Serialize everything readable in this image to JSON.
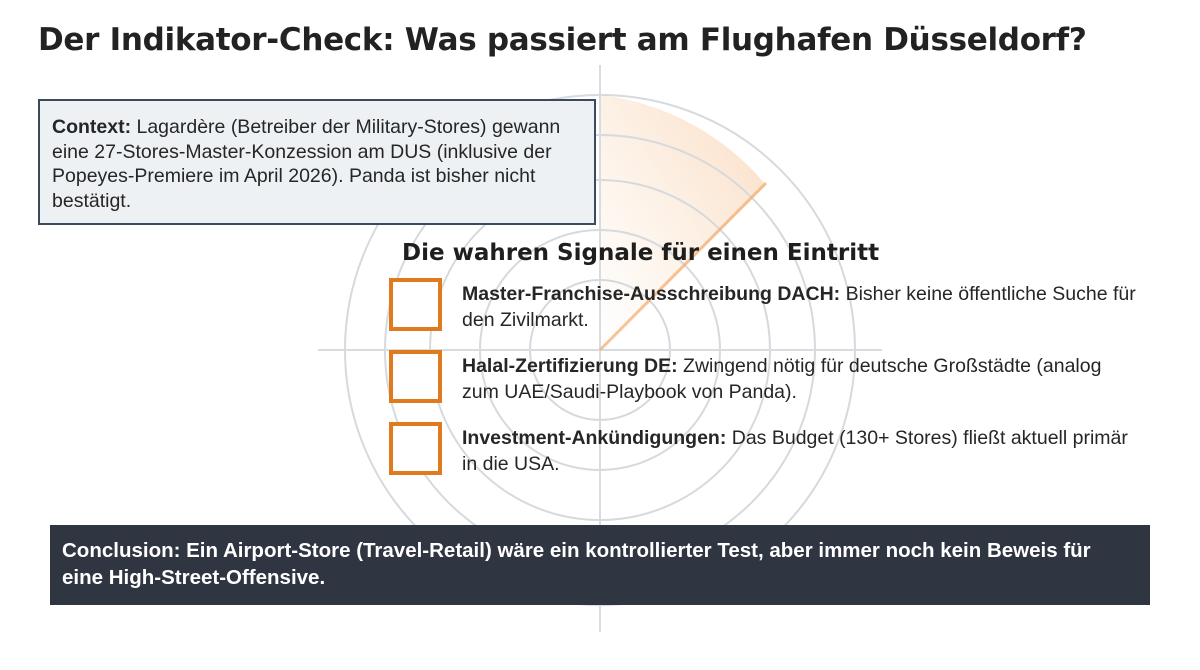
{
  "title": "Der Indikator-Check: Was passiert am Flughafen Düsseldorf?",
  "context": {
    "label": "Context:",
    "text": " Lagardère (Betreiber der Military-Stores) gewann eine 27-Stores-Master-Konzession am DUS (inklusive der Popeyes-Premiere im April 2026). Panda ist bisher nicht bestätigt."
  },
  "signals": {
    "heading": "Die wahren Signale für einen Eintritt",
    "items": [
      {
        "label": "Master-Franchise-Ausschreibung DACH:",
        "text": " Bisher keine öffentliche Suche für den Zivilmarkt."
      },
      {
        "label": "Halal-Zertifizierung DE:",
        "text": " Zwingend nötig für deutsche Großstädte (analog zum UAE/Saudi-Playbook von Panda)."
      },
      {
        "label": "Investment-Ankündigungen:",
        "text": " Das Budget (130+ Stores) fließt aktuell primär in die USA."
      }
    ]
  },
  "conclusion": "Conclusion: Ein Airport-Store (Travel-Retail) wäre ein kontrollierter Test, aber immer noch kein Beweis für eine High-Street-Offensive.",
  "colors": {
    "accent": "#e07a1f",
    "dark_panel": "#2f3642",
    "context_bg": "#eef1f4",
    "context_border": "#3b4a5c"
  }
}
